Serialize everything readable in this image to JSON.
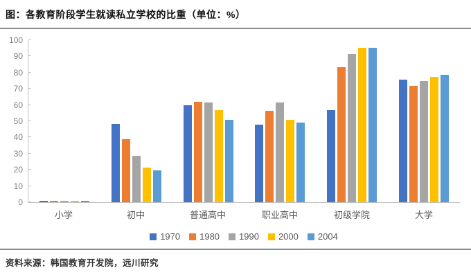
{
  "header": {
    "title": "图：各教育阶段学生就读私立学校的比重（单位：%）"
  },
  "chart_data": {
    "type": "bar",
    "title": "各教育阶段学生就读私立学校的比重",
    "unit": "%",
    "categories": [
      "小学",
      "初中",
      "普通高中",
      "职业高中",
      "初级学院",
      "大学"
    ],
    "series": [
      {
        "name": "1970",
        "color": "#4472C4",
        "values": [
          1,
          48.5,
          60,
          48,
          57,
          75.5
        ]
      },
      {
        "name": "1980",
        "color": "#ED7D31",
        "values": [
          1,
          39,
          62,
          56.5,
          83.5,
          72
        ]
      },
      {
        "name": "1990",
        "color": "#A5A5A5",
        "values": [
          1,
          28.5,
          61.5,
          61.5,
          91.5,
          75
        ]
      },
      {
        "name": "2000",
        "color": "#FFC000",
        "values": [
          1,
          21.5,
          57,
          51,
          95.5,
          77.5
        ]
      },
      {
        "name": "2004",
        "color": "#5B9BD5",
        "values": [
          1,
          19.5,
          51,
          49,
          95.5,
          78.5
        ]
      }
    ],
    "ylim": [
      0,
      100
    ],
    "ytick_step": 10,
    "grid": false,
    "legend_position": "bottom"
  },
  "footer": {
    "source": "资料来源：韩国教育开发院，远川研究"
  }
}
